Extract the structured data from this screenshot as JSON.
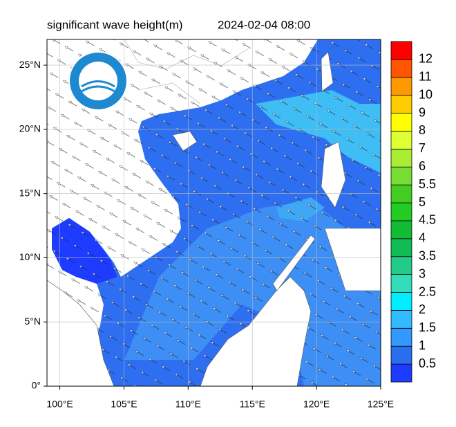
{
  "chart_data": {
    "type": "map",
    "title": "significant wave height(m)",
    "time": "2024-02-04 08:00",
    "xlim": [
      99,
      125
    ],
    "ylim": [
      0,
      27
    ],
    "xticks": [
      {
        "value": 100,
        "label": "100°E"
      },
      {
        "value": 105,
        "label": "105°E"
      },
      {
        "value": 110,
        "label": "110°E"
      },
      {
        "value": 115,
        "label": "115°E"
      },
      {
        "value": 120,
        "label": "120°E"
      },
      {
        "value": 125,
        "label": "125°E"
      }
    ],
    "yticks": [
      {
        "value": 0,
        "label": "0°"
      },
      {
        "value": 5,
        "label": "5°N"
      },
      {
        "value": 10,
        "label": "10°N"
      },
      {
        "value": 15,
        "label": "15°N"
      },
      {
        "value": 20,
        "label": "20°N"
      },
      {
        "value": 25,
        "label": "25°N"
      }
    ],
    "grid": true,
    "colorbar": {
      "levels": [
        0.5,
        1,
        1.5,
        2,
        2.5,
        3,
        3.5,
        4,
        4.5,
        5,
        5.5,
        6,
        7,
        8,
        9,
        10,
        11,
        12
      ],
      "colors": [
        "#1e3cff",
        "#2a6ef0",
        "#3399ff",
        "#33bbff",
        "#00eeff",
        "#33ddbb",
        "#22cc88",
        "#11bb55",
        "#11bb33",
        "#22cc22",
        "#44cc22",
        "#77dd33",
        "#aaee33",
        "#ddff33",
        "#ffff00",
        "#ffcc00",
        "#ff9900",
        "#ff5500",
        "#ff0000"
      ]
    }
  }
}
